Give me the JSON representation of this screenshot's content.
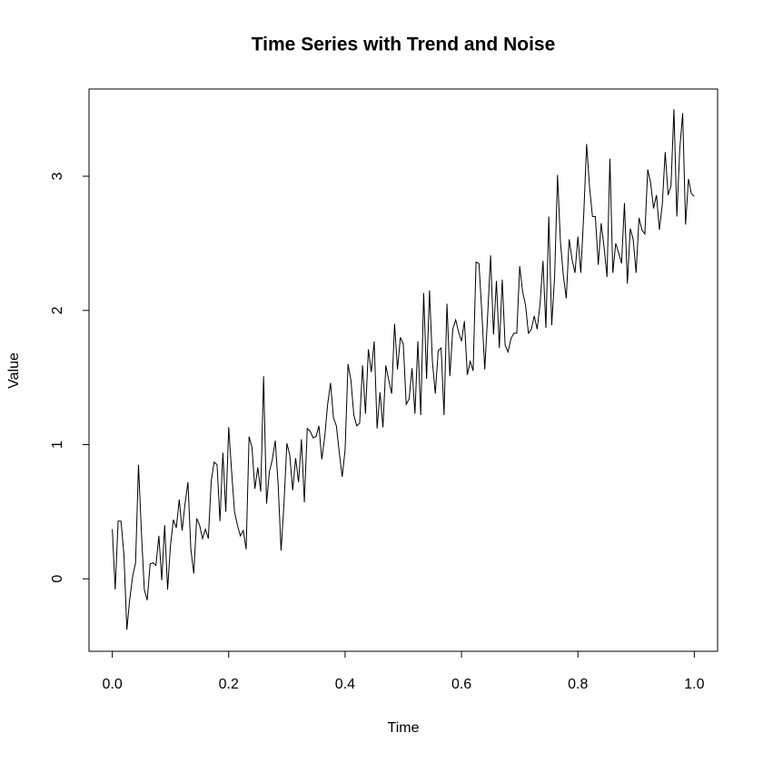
{
  "chart_data": {
    "type": "line",
    "title": "Time Series with Trend and Noise",
    "x_label": "Time",
    "y_label": "Value",
    "x": [
      0,
      0.005,
      0.01,
      0.015,
      0.02,
      0.025,
      0.03,
      0.035,
      0.04,
      0.045,
      0.05,
      0.055,
      0.06,
      0.065,
      0.07,
      0.075,
      0.08,
      0.085,
      0.09,
      0.095,
      0.1,
      0.105,
      0.11,
      0.115,
      0.12,
      0.125,
      0.13,
      0.135,
      0.14,
      0.145,
      0.15,
      0.155,
      0.16,
      0.165,
      0.17,
      0.175,
      0.18,
      0.185,
      0.19,
      0.195,
      0.2,
      0.205,
      0.21,
      0.215,
      0.22,
      0.225,
      0.23,
      0.235,
      0.24,
      0.245,
      0.25,
      0.255,
      0.26,
      0.265,
      0.27,
      0.275,
      0.28,
      0.285,
      0.29,
      0.295,
      0.3,
      0.305,
      0.31,
      0.315,
      0.32,
      0.325,
      0.33,
      0.335,
      0.34,
      0.345,
      0.35,
      0.355,
      0.36,
      0.365,
      0.37,
      0.375,
      0.38,
      0.385,
      0.39,
      0.395,
      0.4,
      0.405,
      0.41,
      0.415,
      0.42,
      0.425,
      0.43,
      0.435,
      0.44,
      0.445,
      0.45,
      0.455,
      0.46,
      0.465,
      0.47,
      0.475,
      0.48,
      0.485,
      0.49,
      0.495,
      0.5,
      0.505,
      0.51,
      0.515,
      0.52,
      0.525,
      0.53,
      0.535,
      0.54,
      0.545,
      0.55,
      0.555,
      0.56,
      0.565,
      0.57,
      0.575,
      0.58,
      0.585,
      0.59,
      0.595,
      0.6,
      0.605,
      0.61,
      0.615,
      0.62,
      0.625,
      0.63,
      0.635,
      0.64,
      0.645,
      0.65,
      0.655,
      0.66,
      0.665,
      0.67,
      0.675,
      0.68,
      0.685,
      0.69,
      0.695,
      0.7,
      0.705,
      0.71,
      0.715,
      0.72,
      0.725,
      0.73,
      0.735,
      0.74,
      0.745,
      0.75,
      0.755,
      0.76,
      0.765,
      0.77,
      0.775,
      0.78,
      0.785,
      0.79,
      0.795,
      0.8,
      0.805,
      0.81,
      0.815,
      0.82,
      0.825,
      0.83,
      0.835,
      0.84,
      0.845,
      0.85,
      0.855,
      0.86,
      0.865,
      0.87,
      0.875,
      0.88,
      0.885,
      0.89,
      0.895,
      0.9,
      0.905,
      0.91,
      0.915,
      0.92,
      0.925,
      0.93,
      0.935,
      0.94,
      0.945,
      0.95,
      0.955,
      0.96,
      0.965,
      0.97,
      0.975,
      0.98,
      0.985,
      0.99,
      0.995,
      1
    ],
    "values": [
      0.37,
      -0.08,
      0.43,
      0.43,
      0.18,
      -0.38,
      -0.15,
      0.02,
      0.12,
      0.85,
      0.35,
      -0.08,
      -0.16,
      0.11,
      0.12,
      0.1,
      0.32,
      -0.01,
      0.4,
      -0.08,
      0.25,
      0.44,
      0.38,
      0.59,
      0.36,
      0.56,
      0.72,
      0.22,
      0.04,
      0.45,
      0.4,
      0.3,
      0.37,
      0.3,
      0.73,
      0.87,
      0.85,
      0.43,
      0.94,
      0.5,
      1.13,
      0.8,
      0.5,
      0.4,
      0.32,
      0.36,
      0.22,
      1.06,
      0.98,
      0.67,
      0.83,
      0.65,
      1.51,
      0.56,
      0.8,
      0.89,
      1.03,
      0.7,
      0.21,
      0.56,
      1.01,
      0.92,
      0.66,
      0.9,
      0.72,
      1.04,
      0.57,
      1.12,
      1.1,
      1.05,
      1.06,
      1.14,
      0.89,
      1.06,
      1.3,
      1.46,
      1.2,
      1.14,
      0.94,
      0.76,
      0.96,
      1.6,
      1.48,
      1.22,
      1.14,
      1.16,
      1.59,
      1.23,
      1.71,
      1.54,
      1.77,
      1.12,
      1.39,
      1.13,
      1.59,
      1.48,
      1.38,
      1.9,
      1.56,
      1.8,
      1.75,
      1.3,
      1.34,
      1.57,
      1.23,
      1.77,
      1.22,
      2.13,
      1.49,
      2.15,
      1.62,
      1.38,
      1.7,
      1.72,
      1.22,
      2.05,
      1.51,
      1.86,
      1.93,
      1.84,
      1.77,
      1.92,
      1.52,
      1.62,
      1.55,
      2.36,
      2.35,
      1.98,
      1.56,
      1.97,
      2.41,
      1.82,
      2.22,
      1.72,
      2.23,
      1.74,
      1.69,
      1.79,
      1.83,
      1.83,
      2.33,
      2.14,
      2.04,
      1.83,
      1.86,
      1.96,
      1.86,
      2.05,
      2.37,
      1.87,
      2.7,
      1.89,
      2.25,
      3.01,
      2.51,
      2.26,
      2.09,
      2.53,
      2.38,
      2.28,
      2.55,
      2.28,
      2.71,
      3.24,
      2.92,
      2.7,
      2.7,
      2.34,
      2.65,
      2.47,
      2.25,
      3.13,
      2.28,
      2.5,
      2.43,
      2.35,
      2.8,
      2.2,
      2.61,
      2.53,
      2.28,
      2.69,
      2.6,
      2.57,
      3.05,
      2.95,
      2.76,
      2.86,
      2.6,
      2.79,
      3.18,
      2.86,
      2.93,
      3.5,
      2.7,
      3.2,
      3.47,
      2.64,
      2.98,
      2.87,
      2.85
    ],
    "color": "#000000",
    "xlim": [
      -0.04,
      1.04
    ],
    "ylim": [
      -0.54,
      3.65
    ],
    "xticks": [
      {
        "value": 0,
        "label": "0.0"
      },
      0.2,
      0.4,
      0.6,
      0.8,
      {
        "value": 1,
        "label": "1.0"
      }
    ],
    "yticks": [
      0,
      1,
      2,
      3
    ]
  }
}
